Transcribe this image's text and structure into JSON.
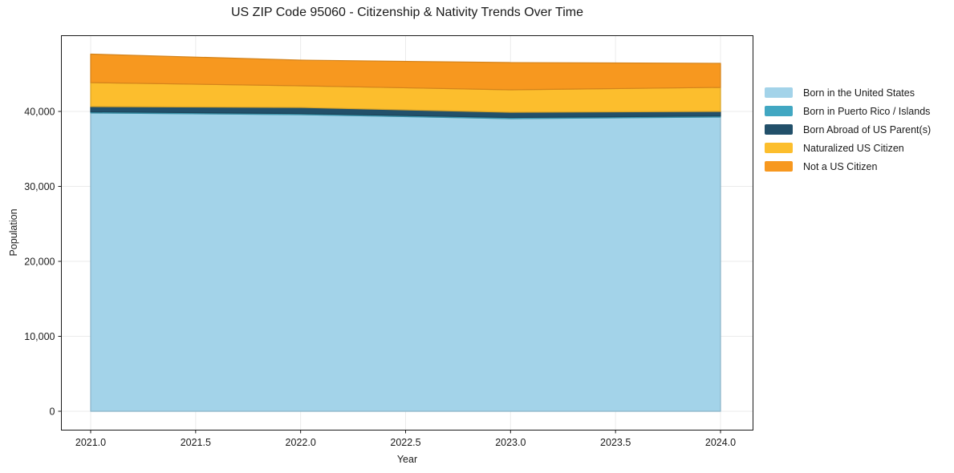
{
  "title": "US ZIP Code 95060 - Citizenship & Nativity Trends Over Time",
  "chart_data": {
    "type": "area",
    "stacked": true,
    "title": "US ZIP Code 95060 - Citizenship & Nativity Trends Over Time",
    "xlabel": "Year",
    "ylabel": "Population",
    "x": [
      2021,
      2022,
      2023,
      2024
    ],
    "series": [
      {
        "name": "Born in the United States",
        "color": "#A3D3E9",
        "values": [
          39800,
          39570,
          39040,
          39250
        ]
      },
      {
        "name": "Born in Puerto Rico / Islands",
        "color": "#41A7C2",
        "values": [
          150,
          150,
          150,
          150
        ]
      },
      {
        "name": "Born Abroad of US Parent(s)",
        "color": "#22506A",
        "values": [
          700,
          810,
          700,
          600
        ]
      },
      {
        "name": "Naturalized US Citizen",
        "color": "#FCBE2D",
        "values": [
          3200,
          2890,
          3000,
          3210
        ]
      },
      {
        "name": "Not a US Citizen",
        "color": "#F7981F",
        "values": [
          3800,
          3425,
          3630,
          3210
        ]
      }
    ],
    "totals": [
      47650,
      46845,
      46520,
      46420
    ],
    "x_ticks": [
      2021.0,
      2021.5,
      2022.0,
      2022.5,
      2023.0,
      2023.5,
      2024.0
    ],
    "x_tick_labels": [
      "2021.0",
      "2021.5",
      "2022.0",
      "2022.5",
      "2023.0",
      "2023.5",
      "2024.0"
    ],
    "y_ticks": [
      0,
      10000,
      20000,
      30000,
      40000
    ],
    "y_tick_labels": [
      "0",
      "10,000",
      "20,000",
      "30,000",
      "40,000"
    ],
    "xlim": [
      2020.86,
      2024.15
    ],
    "ylim": [
      -2500,
      50100
    ],
    "grid": true,
    "grid_color": "#ebebeb",
    "axis_color": "#1a1a1a",
    "background": "#ffffff",
    "legend_position": "outside-right"
  }
}
